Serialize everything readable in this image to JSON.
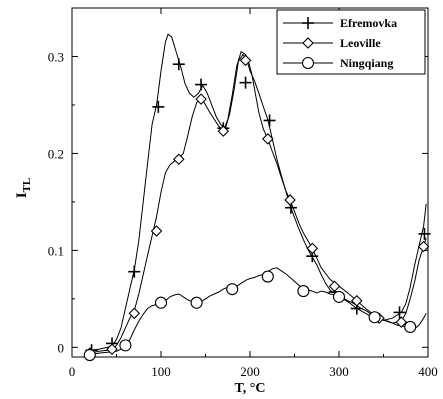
{
  "chart_data": {
    "type": "line",
    "title": "",
    "xlabel": "T, °C",
    "ylabel_main": "I",
    "ylabel_sub": "TL",
    "xlim": [
      0,
      400
    ],
    "ylim": [
      -0.01,
      0.35
    ],
    "xticks": [
      {
        "v": 0,
        "label": "0"
      },
      {
        "v": 100,
        "label": "100"
      },
      {
        "v": 200,
        "label": "200"
      },
      {
        "v": 300,
        "label": "300"
      },
      {
        "v": 400,
        "label": "400"
      }
    ],
    "yticks": [
      {
        "v": 0,
        "label": "0"
      },
      {
        "v": 0.1,
        "label": "0.1"
      },
      {
        "v": 0.2,
        "label": "0.2"
      },
      {
        "v": 0.3,
        "label": "0.3"
      }
    ],
    "grid": false,
    "legend_position": "top-right",
    "series": [
      {
        "name": "Efremovka",
        "marker": "plus",
        "points": [
          [
            20,
            -0.003
          ],
          [
            30,
            -0.002
          ],
          [
            40,
            0.0
          ],
          [
            45,
            0.002
          ],
          [
            50,
            0.008
          ],
          [
            55,
            0.02
          ],
          [
            60,
            0.04
          ],
          [
            65,
            0.06
          ],
          [
            70,
            0.08
          ],
          [
            75,
            0.11
          ],
          [
            80,
            0.15
          ],
          [
            85,
            0.19
          ],
          [
            90,
            0.23
          ],
          [
            95,
            0.25
          ],
          [
            100,
            0.285
          ],
          [
            105,
            0.315
          ],
          [
            108,
            0.323
          ],
          [
            112,
            0.32
          ],
          [
            117,
            0.305
          ],
          [
            122,
            0.29
          ],
          [
            127,
            0.272
          ],
          [
            132,
            0.262
          ],
          [
            137,
            0.258
          ],
          [
            142,
            0.262
          ],
          [
            147,
            0.27
          ],
          [
            152,
            0.262
          ],
          [
            157,
            0.25
          ],
          [
            162,
            0.238
          ],
          [
            167,
            0.23
          ],
          [
            172,
            0.225
          ],
          [
            177,
            0.24
          ],
          [
            182,
            0.265
          ],
          [
            187,
            0.295
          ],
          [
            192,
            0.302
          ],
          [
            196,
            0.298
          ],
          [
            200,
            0.285
          ],
          [
            205,
            0.275
          ],
          [
            210,
            0.262
          ],
          [
            215,
            0.248
          ],
          [
            220,
            0.235
          ],
          [
            225,
            0.215
          ],
          [
            230,
            0.195
          ],
          [
            235,
            0.178
          ],
          [
            240,
            0.162
          ],
          [
            245,
            0.146
          ],
          [
            250,
            0.134
          ],
          [
            255,
            0.122
          ],
          [
            260,
            0.111
          ],
          [
            265,
            0.101
          ],
          [
            270,
            0.093
          ],
          [
            275,
            0.085
          ],
          [
            280,
            0.075
          ],
          [
            285,
            0.066
          ],
          [
            290,
            0.059
          ],
          [
            300,
            0.052
          ],
          [
            310,
            0.047
          ],
          [
            320,
            0.04
          ],
          [
            330,
            0.035
          ],
          [
            340,
            0.03
          ],
          [
            350,
            0.028
          ],
          [
            360,
            0.03
          ],
          [
            370,
            0.036
          ],
          [
            375,
            0.045
          ],
          [
            380,
            0.062
          ],
          [
            385,
            0.085
          ],
          [
            390,
            0.105
          ],
          [
            395,
            0.125
          ],
          [
            398,
            0.148
          ]
        ],
        "markers": [
          [
            22,
            -0.003
          ],
          [
            45,
            0.004
          ],
          [
            70,
            0.078
          ],
          [
            97,
            0.248
          ],
          [
            120,
            0.292
          ],
          [
            145,
            0.271
          ],
          [
            170,
            0.226
          ],
          [
            195,
            0.273
          ],
          [
            222,
            0.234
          ],
          [
            246,
            0.144
          ],
          [
            270,
            0.094
          ],
          [
            295,
            0.057
          ],
          [
            320,
            0.04
          ],
          [
            368,
            0.036
          ],
          [
            396,
            0.117
          ]
        ]
      },
      {
        "name": "Leoville",
        "marker": "diamond",
        "points": [
          [
            20,
            -0.006
          ],
          [
            30,
            -0.004
          ],
          [
            40,
            -0.003
          ],
          [
            45,
            -0.002
          ],
          [
            50,
            0.002
          ],
          [
            55,
            0.01
          ],
          [
            60,
            0.02
          ],
          [
            65,
            0.03
          ],
          [
            70,
            0.038
          ],
          [
            75,
            0.055
          ],
          [
            80,
            0.075
          ],
          [
            85,
            0.095
          ],
          [
            90,
            0.115
          ],
          [
            95,
            0.135
          ],
          [
            100,
            0.16
          ],
          [
            105,
            0.18
          ],
          [
            110,
            0.188
          ],
          [
            115,
            0.192
          ],
          [
            120,
            0.195
          ],
          [
            125,
            0.2
          ],
          [
            130,
            0.218
          ],
          [
            135,
            0.238
          ],
          [
            140,
            0.252
          ],
          [
            145,
            0.258
          ],
          [
            150,
            0.25
          ],
          [
            155,
            0.242
          ],
          [
            160,
            0.235
          ],
          [
            165,
            0.228
          ],
          [
            170,
            0.223
          ],
          [
            175,
            0.235
          ],
          [
            180,
            0.26
          ],
          [
            185,
            0.29
          ],
          [
            190,
            0.305
          ],
          [
            195,
            0.302
          ],
          [
            198,
            0.296
          ],
          [
            202,
            0.282
          ],
          [
            206,
            0.262
          ],
          [
            210,
            0.242
          ],
          [
            215,
            0.225
          ],
          [
            220,
            0.215
          ],
          [
            225,
            0.202
          ],
          [
            230,
            0.19
          ],
          [
            235,
            0.176
          ],
          [
            240,
            0.162
          ],
          [
            245,
            0.152
          ],
          [
            250,
            0.14
          ],
          [
            255,
            0.128
          ],
          [
            260,
            0.118
          ],
          [
            265,
            0.11
          ],
          [
            270,
            0.102
          ],
          [
            275,
            0.092
          ],
          [
            280,
            0.082
          ],
          [
            290,
            0.07
          ],
          [
            300,
            0.063
          ],
          [
            310,
            0.056
          ],
          [
            320,
            0.048
          ],
          [
            330,
            0.04
          ],
          [
            340,
            0.033
          ],
          [
            350,
            0.028
          ],
          [
            360,
            0.025
          ],
          [
            370,
            0.027
          ],
          [
            375,
            0.035
          ],
          [
            380,
            0.05
          ],
          [
            385,
            0.068
          ],
          [
            390,
            0.09
          ],
          [
            395,
            0.104
          ],
          [
            398,
            0.113
          ]
        ],
        "markers": [
          [
            20,
            -0.006
          ],
          [
            45,
            -0.002
          ],
          [
            70,
            0.035
          ],
          [
            95,
            0.12
          ],
          [
            120,
            0.194
          ],
          [
            145,
            0.256
          ],
          [
            170,
            0.223
          ],
          [
            195,
            0.296
          ],
          [
            220,
            0.215
          ],
          [
            245,
            0.152
          ],
          [
            270,
            0.102
          ],
          [
            295,
            0.063
          ],
          [
            320,
            0.048
          ],
          [
            345,
            0.03
          ],
          [
            370,
            0.026
          ],
          [
            395,
            0.104
          ]
        ]
      },
      {
        "name": "Ningqiang",
        "marker": "circle",
        "points": [
          [
            20,
            -0.008
          ],
          [
            30,
            -0.006
          ],
          [
            40,
            -0.005
          ],
          [
            50,
            -0.004
          ],
          [
            55,
            -0.002
          ],
          [
            60,
            0.001
          ],
          [
            65,
            0.008
          ],
          [
            70,
            0.018
          ],
          [
            75,
            0.027
          ],
          [
            80,
            0.034
          ],
          [
            85,
            0.04
          ],
          [
            90,
            0.043
          ],
          [
            95,
            0.044
          ],
          [
            100,
            0.046
          ],
          [
            105,
            0.048
          ],
          [
            110,
            0.052
          ],
          [
            115,
            0.054
          ],
          [
            120,
            0.055
          ],
          [
            125,
            0.052
          ],
          [
            130,
            0.049
          ],
          [
            135,
            0.047
          ],
          [
            140,
            0.046
          ],
          [
            145,
            0.047
          ],
          [
            150,
            0.05
          ],
          [
            155,
            0.053
          ],
          [
            160,
            0.055
          ],
          [
            165,
            0.057
          ],
          [
            170,
            0.06
          ],
          [
            175,
            0.062
          ],
          [
            180,
            0.061
          ],
          [
            185,
            0.063
          ],
          [
            190,
            0.066
          ],
          [
            195,
            0.069
          ],
          [
            200,
            0.071
          ],
          [
            205,
            0.072
          ],
          [
            210,
            0.074
          ],
          [
            215,
            0.075
          ],
          [
            220,
            0.078
          ],
          [
            225,
            0.081
          ],
          [
            230,
            0.082
          ],
          [
            235,
            0.079
          ],
          [
            240,
            0.076
          ],
          [
            245,
            0.072
          ],
          [
            250,
            0.068
          ],
          [
            255,
            0.064
          ],
          [
            260,
            0.061
          ],
          [
            265,
            0.059
          ],
          [
            270,
            0.058
          ],
          [
            275,
            0.056
          ],
          [
            280,
            0.058
          ],
          [
            285,
            0.057
          ],
          [
            290,
            0.055
          ],
          [
            295,
            0.054
          ],
          [
            300,
            0.053
          ],
          [
            305,
            0.051
          ],
          [
            310,
            0.048
          ],
          [
            315,
            0.046
          ],
          [
            320,
            0.043
          ],
          [
            325,
            0.04
          ],
          [
            330,
            0.038
          ],
          [
            335,
            0.035
          ],
          [
            340,
            0.032
          ],
          [
            345,
            0.03
          ],
          [
            350,
            0.028
          ],
          [
            355,
            0.027
          ],
          [
            360,
            0.025
          ],
          [
            365,
            0.023
          ],
          [
            370,
            0.022
          ],
          [
            375,
            0.021
          ],
          [
            380,
            0.019
          ],
          [
            385,
            0.019
          ],
          [
            390,
            0.023
          ],
          [
            395,
            0.03
          ],
          [
            398,
            0.035
          ]
        ],
        "markers": [
          [
            20,
            -0.008
          ],
          [
            60,
            0.002
          ],
          [
            100,
            0.046
          ],
          [
            140,
            0.046
          ],
          [
            180,
            0.06
          ],
          [
            220,
            0.073
          ],
          [
            260,
            0.058
          ],
          [
            300,
            0.052
          ],
          [
            340,
            0.031
          ],
          [
            380,
            0.021
          ]
        ]
      }
    ]
  }
}
